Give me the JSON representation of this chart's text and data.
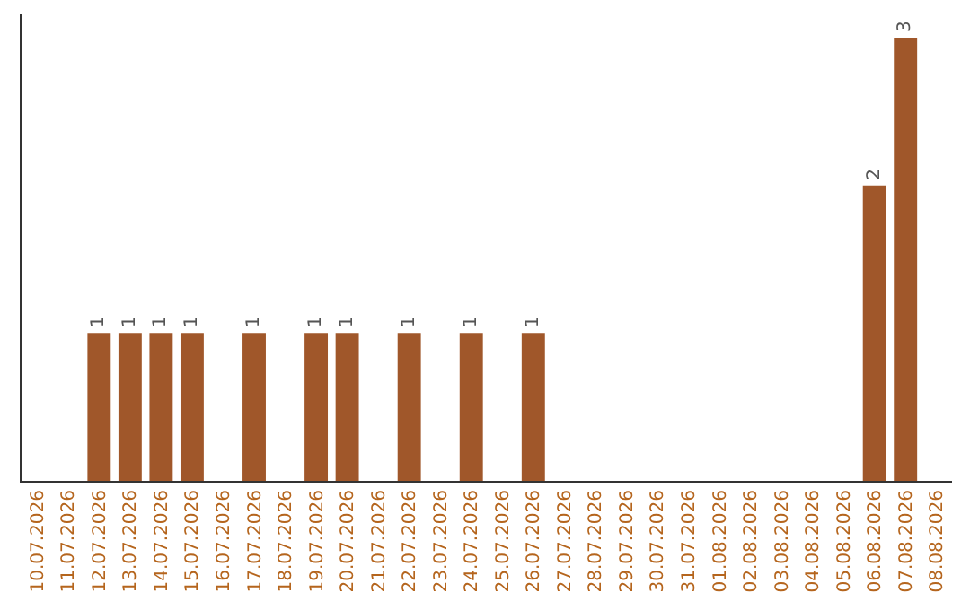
{
  "chart_data": {
    "type": "bar",
    "categories": [
      "10.07.2026",
      "11.07.2026",
      "12.07.2026",
      "13.07.2026",
      "14.07.2026",
      "15.07.2026",
      "16.07.2026",
      "17.07.2026",
      "18.07.2026",
      "19.07.2026",
      "20.07.2026",
      "21.07.2026",
      "22.07.2026",
      "23.07.2026",
      "24.07.2026",
      "25.07.2026",
      "26.07.2026",
      "27.07.2026",
      "28.07.2026",
      "29.07.2026",
      "30.07.2026",
      "31.07.2026",
      "01.08.2026",
      "02.08.2026",
      "03.08.2026",
      "04.08.2026",
      "05.08.2026",
      "06.08.2026",
      "07.08.2026",
      "08.08.2026"
    ],
    "values": [
      0,
      0,
      1,
      1,
      1,
      1,
      0,
      1,
      0,
      1,
      1,
      0,
      1,
      0,
      1,
      0,
      1,
      0,
      0,
      0,
      0,
      0,
      0,
      0,
      0,
      0,
      0,
      2,
      3,
      0
    ],
    "value_labels": [
      null,
      null,
      "1",
      "1",
      "1",
      "1",
      null,
      "1",
      null,
      "1",
      "1",
      null,
      "1",
      null,
      "1",
      null,
      "1",
      null,
      null,
      null,
      null,
      null,
      null,
      null,
      null,
      null,
      null,
      "2",
      "3",
      null
    ],
    "color": "#a0572a",
    "tick_labels": "x"
  }
}
